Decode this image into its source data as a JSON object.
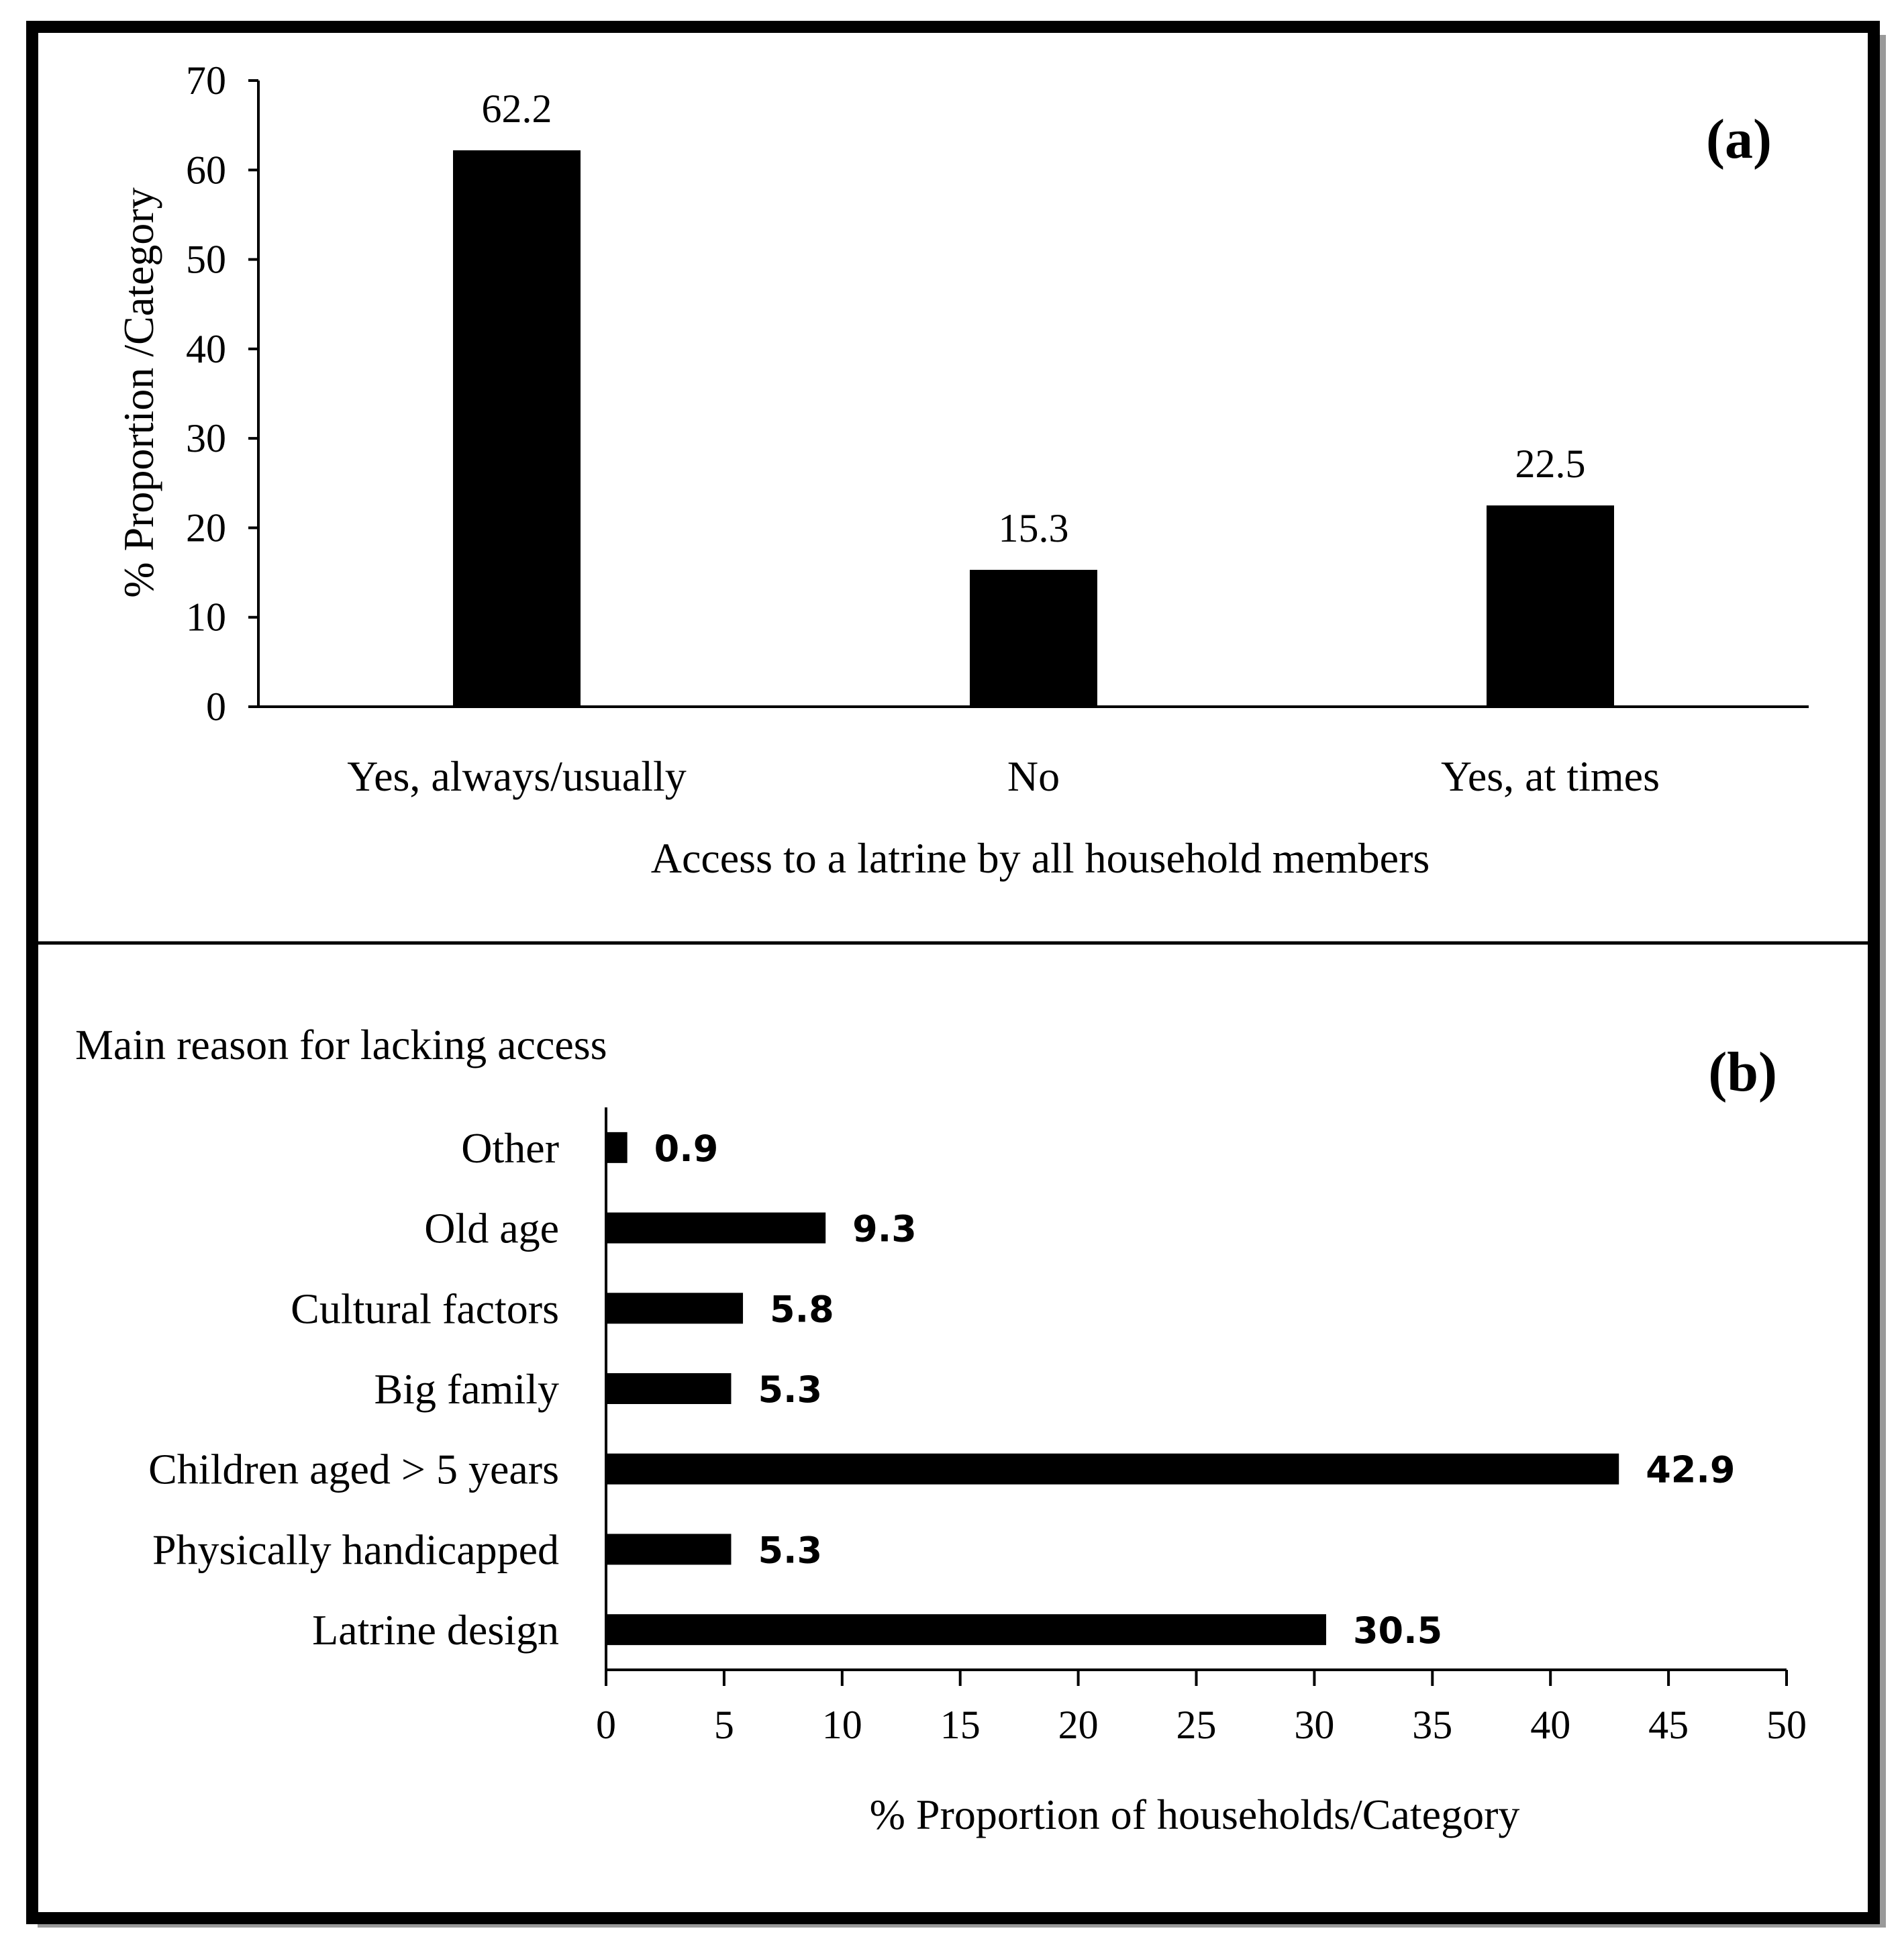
{
  "colors": {
    "bar": "#000000",
    "frame": "#000000",
    "background": "#ffffff"
  },
  "chart_data": [
    {
      "type": "bar",
      "panel_label": "(a)",
      "categories": [
        "Yes, always/usually",
        "No",
        "Yes, at times"
      ],
      "values": [
        62.2,
        15.3,
        22.5
      ],
      "data_labels": [
        "62.2",
        "15.3",
        "22.5"
      ],
      "title": "",
      "xlabel": "Access to a latrine by all household members",
      "ylabel": "% Proportion /Category",
      "ylim": [
        0,
        70
      ],
      "yticks": [
        0,
        10,
        20,
        30,
        40,
        50,
        60,
        70
      ],
      "grid": false,
      "legend": "none"
    },
    {
      "type": "bar",
      "orientation": "horizontal",
      "panel_label": "(b)",
      "title": "Main reason for lacking access",
      "categories": [
        "Other",
        "Old age",
        "Cultural factors",
        "Big family",
        "Children aged > 5 years",
        "Physically handicapped",
        "Latrine design"
      ],
      "values": [
        0.9,
        9.3,
        5.8,
        5.3,
        42.9,
        5.3,
        30.5
      ],
      "data_labels": [
        "0.9",
        "9.3",
        "5.8",
        "5.3",
        "42.9",
        "5.3",
        "30.5"
      ],
      "xlabel": "% Proportion of households/Category",
      "ylabel": "",
      "xlim": [
        0,
        50
      ],
      "xticks": [
        0,
        5,
        10,
        15,
        20,
        25,
        30,
        35,
        40,
        45,
        50
      ],
      "grid": false,
      "legend": "none"
    }
  ]
}
